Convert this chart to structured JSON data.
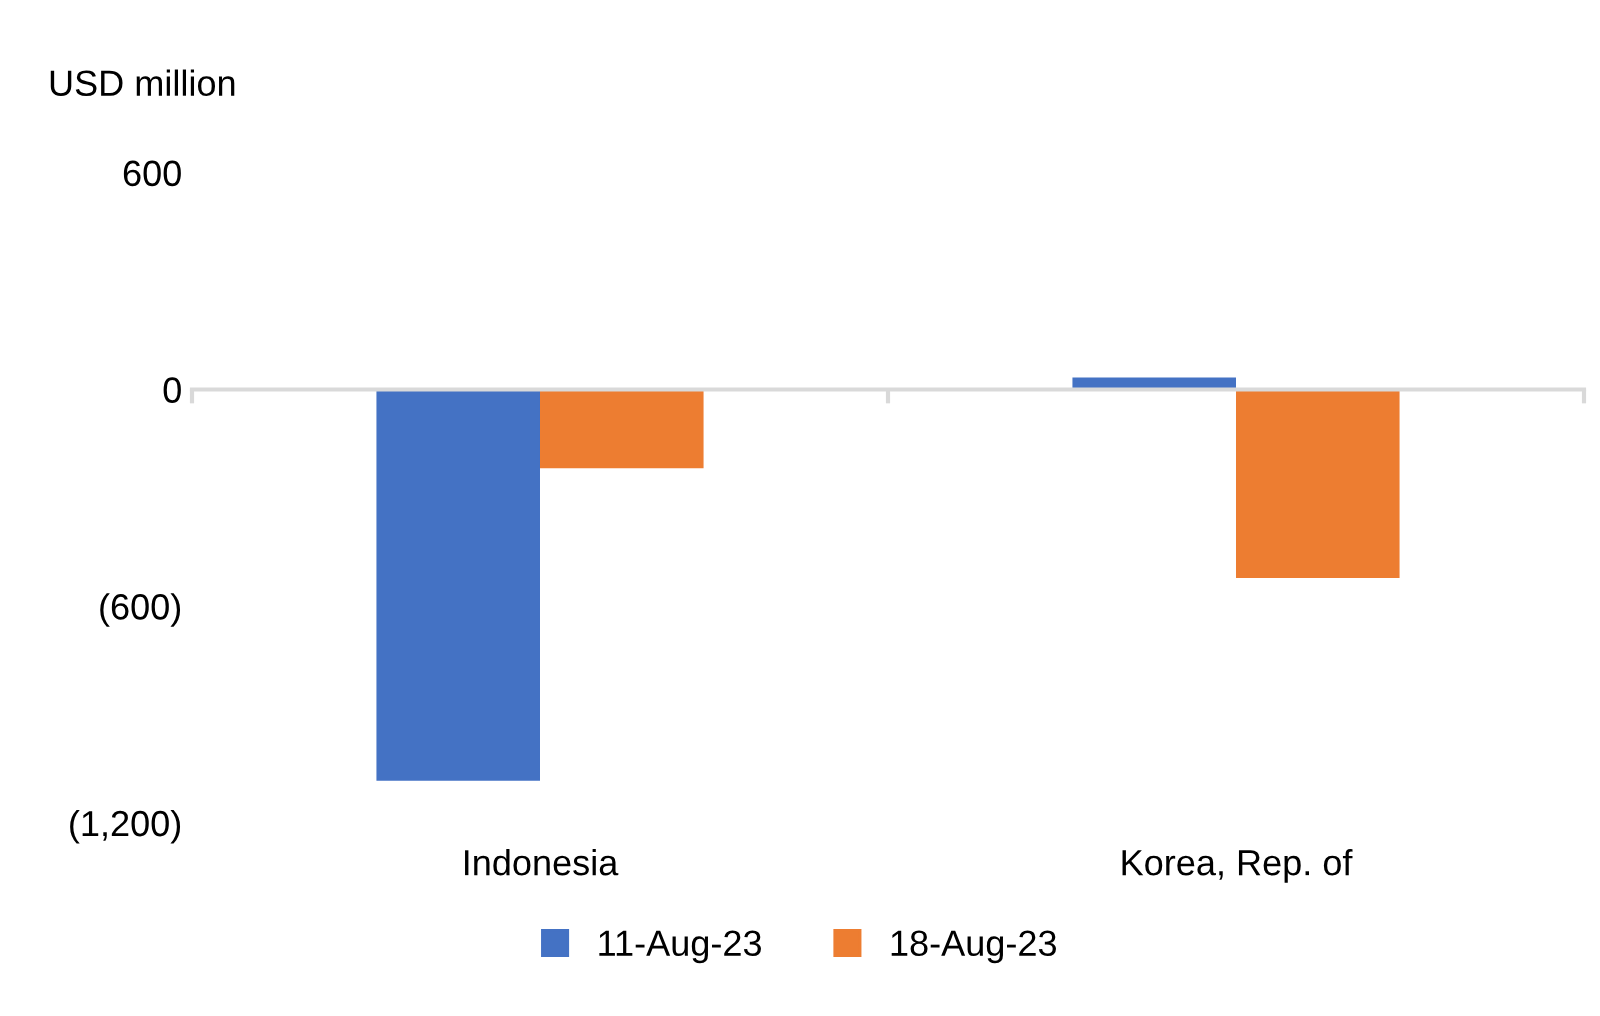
{
  "chart_data": {
    "type": "bar",
    "ylabel": "USD million",
    "categories": [
      "Indonesia",
      "Korea, Rep. of"
    ],
    "series": [
      {
        "name": "11-Aug-23",
        "color": "#4472c4",
        "values": [
          -1083,
          33
        ]
      },
      {
        "name": "18-Aug-23",
        "color": "#ed7d31",
        "values": [
          -218,
          -522
        ]
      }
    ],
    "ylim": [
      -1200,
      600
    ],
    "yticks": [
      600,
      0,
      {
        "value": -600,
        "label": "(600)"
      },
      {
        "value": -1200,
        "label": "(1,200)"
      }
    ],
    "legend": "bottom"
  }
}
